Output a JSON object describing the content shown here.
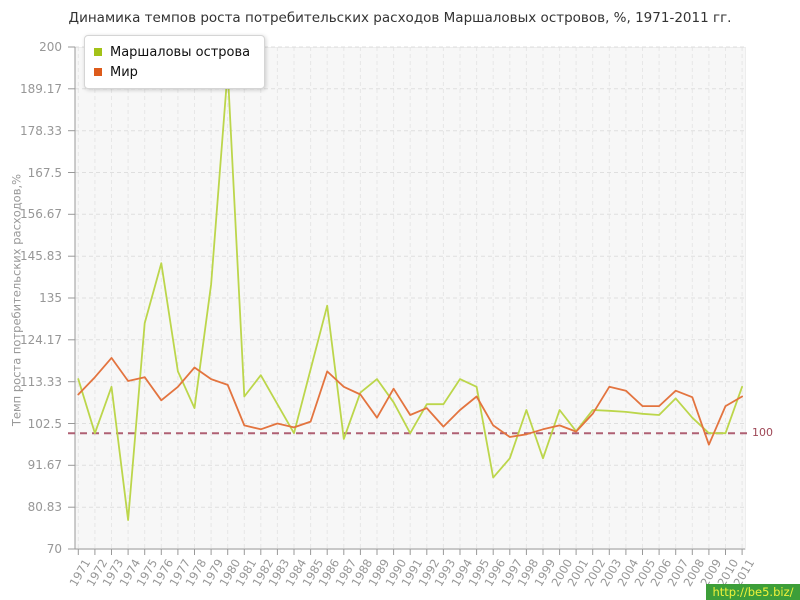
{
  "title": "Динамика темпов роста потребительских расходов Маршаловых островов, %, 1971-2011 гг.",
  "y_axis_title": "Темп роста потребительских расходов,%",
  "legend": {
    "items": [
      {
        "label": "Маршаловы острова",
        "swatch": "#a3c218"
      },
      {
        "label": "Мир",
        "swatch": "#dd5b1b"
      }
    ]
  },
  "reference_line": {
    "value": 100,
    "label": "100",
    "line_color": "#af6073",
    "label_color": "#9e4756"
  },
  "watermark": "http://be5.biz/",
  "colors": {
    "plot_background": "#f7f7f7",
    "h_gridline": "#dfdfdf",
    "v_gridline": "#e7e7e7",
    "axis": "#999999",
    "tick_text": "#979797"
  },
  "chart_data": {
    "type": "line",
    "title": "Динамика темпов роста потребительских расходов Маршаловых островов, %, 1971-2011 гг.",
    "xlabel": "",
    "ylabel": "Темп роста потребительских расходов,%",
    "ylim": [
      70,
      200
    ],
    "grid": true,
    "legend_position": "top-left",
    "y_ticks": [
      200,
      189.17,
      178.33,
      167.5,
      156.67,
      145.83,
      135,
      124.17,
      113.33,
      102.5,
      91.67,
      80.83,
      70
    ],
    "y_tick_labels": [
      "200",
      "189.17",
      "178.33",
      "167.5",
      "156.67",
      "145.83",
      "135",
      "124.17",
      "113.33",
      "102.5",
      "91.67",
      "80.83",
      "70"
    ],
    "x": [
      1971,
      1972,
      1973,
      1974,
      1975,
      1976,
      1977,
      1978,
      1979,
      1980,
      1981,
      1982,
      1983,
      1984,
      1985,
      1986,
      1987,
      1988,
      1989,
      1990,
      1991,
      1992,
      1993,
      1994,
      1995,
      1996,
      1997,
      1998,
      1999,
      2000,
      2001,
      2002,
      2003,
      2004,
      2005,
      2006,
      2007,
      2008,
      2009,
      2010,
      2011
    ],
    "reference_y": 100,
    "series": [
      {
        "name": "Маршаловы острова",
        "color": "#bcd64b",
        "values": [
          114,
          100,
          112,
          77.5,
          128.5,
          144,
          116,
          106.5,
          138.5,
          194,
          109.5,
          115,
          107.5,
          100,
          116.5,
          133,
          98.5,
          110.5,
          114,
          108,
          100,
          107.5,
          107.5,
          114,
          112,
          88.5,
          93.5,
          106,
          93.5,
          106,
          100.5,
          106,
          105.8,
          105.5,
          105,
          104.7,
          109,
          104,
          100,
          100,
          112
        ]
      },
      {
        "name": "Мир",
        "color": "#e3743f",
        "values": [
          110,
          114.5,
          119.5,
          113.5,
          114.5,
          108.5,
          112,
          117,
          114,
          112.5,
          102,
          101,
          102.5,
          101.5,
          103,
          116,
          112,
          110,
          104,
          111.5,
          104.7,
          106.5,
          101.7,
          106,
          109.5,
          102,
          99,
          99.7,
          101,
          102,
          100.4,
          105,
          112,
          111,
          107,
          107,
          111,
          109.3,
          97,
          107,
          109.5
        ]
      }
    ]
  }
}
